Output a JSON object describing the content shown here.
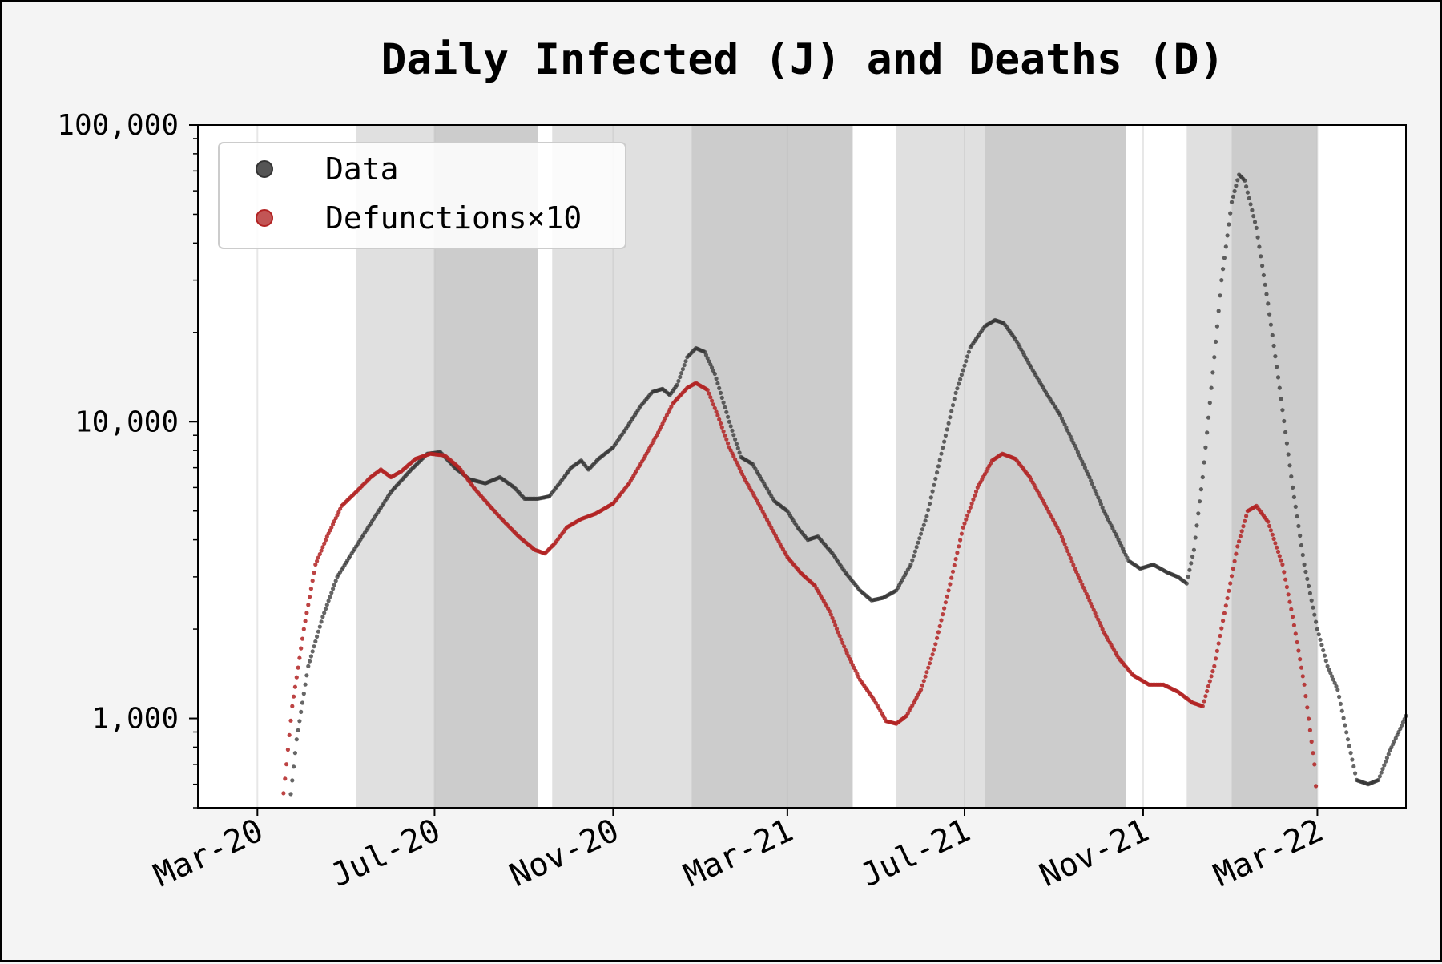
{
  "chart_data": {
    "type": "scatter",
    "title": "Daily Infected (J) and Deaths (D)",
    "xlabel": "",
    "ylabel": "",
    "y_scale": "log",
    "ylim": [
      500,
      100000
    ],
    "xlim": [
      "2020-01-20",
      "2022-05-01"
    ],
    "grid": "vertical lines at x ticks",
    "legend_position": "top-left",
    "y_ticks": [
      {
        "value": 1000,
        "label": "1,000"
      },
      {
        "value": 10000,
        "label": "10,000"
      },
      {
        "value": 100000,
        "label": "100,000"
      }
    ],
    "x_ticks": [
      {
        "date": "2020-03-01",
        "label": "Mar-20"
      },
      {
        "date": "2020-07-01",
        "label": "Jul-20"
      },
      {
        "date": "2020-11-01",
        "label": "Nov-20"
      },
      {
        "date": "2021-03-01",
        "label": "Mar-21"
      },
      {
        "date": "2021-07-01",
        "label": "Jul-21"
      },
      {
        "date": "2021-11-01",
        "label": "Nov-21"
      },
      {
        "date": "2022-03-01",
        "label": "Mar-22"
      }
    ],
    "shaded_periods": [
      {
        "start": "2020-05-08",
        "end": "2020-07-01",
        "shade": "light"
      },
      {
        "start": "2020-07-01",
        "end": "2020-09-10",
        "shade": "dark"
      },
      {
        "start": "2020-09-20",
        "end": "2020-12-25",
        "shade": "light"
      },
      {
        "start": "2020-12-25",
        "end": "2021-04-15",
        "shade": "dark"
      },
      {
        "start": "2021-05-15",
        "end": "2021-07-15",
        "shade": "light"
      },
      {
        "start": "2021-07-15",
        "end": "2021-10-20",
        "shade": "dark"
      },
      {
        "start": "2021-12-01",
        "end": "2022-01-01",
        "shade": "light"
      },
      {
        "start": "2022-01-01",
        "end": "2022-03-01",
        "shade": "dark"
      }
    ],
    "series": [
      {
        "name": "Data",
        "color": "#333333",
        "points": [
          [
            "2020-03-23",
            500
          ],
          [
            "2020-03-28",
            850
          ],
          [
            "2020-04-05",
            1500
          ],
          [
            "2020-04-15",
            2200
          ],
          [
            "2020-04-25",
            3000
          ],
          [
            "2020-05-08",
            3800
          ],
          [
            "2020-05-20",
            4700
          ],
          [
            "2020-06-01",
            5800
          ],
          [
            "2020-06-15",
            6900
          ],
          [
            "2020-06-26",
            7800
          ],
          [
            "2020-07-05",
            7900
          ],
          [
            "2020-07-15",
            7000
          ],
          [
            "2020-07-25",
            6400
          ],
          [
            "2020-08-05",
            6200
          ],
          [
            "2020-08-15",
            6500
          ],
          [
            "2020-08-25",
            6000
          ],
          [
            "2020-09-01",
            5500
          ],
          [
            "2020-09-10",
            5500
          ],
          [
            "2020-09-18",
            5600
          ],
          [
            "2020-09-25",
            6200
          ],
          [
            "2020-10-03",
            7000
          ],
          [
            "2020-10-10",
            7400
          ],
          [
            "2020-10-15",
            6900
          ],
          [
            "2020-10-22",
            7500
          ],
          [
            "2020-11-01",
            8200
          ],
          [
            "2020-11-10",
            9500
          ],
          [
            "2020-11-20",
            11300
          ],
          [
            "2020-11-28",
            12600
          ],
          [
            "2020-12-05",
            12900
          ],
          [
            "2020-12-10",
            12300
          ],
          [
            "2020-12-15",
            13300
          ],
          [
            "2020-12-22",
            16500
          ],
          [
            "2020-12-28",
            17700
          ],
          [
            "2021-01-03",
            17200
          ],
          [
            "2021-01-10",
            14500
          ],
          [
            "2021-01-20",
            10000
          ],
          [
            "2021-01-28",
            7600
          ],
          [
            "2021-02-05",
            7200
          ],
          [
            "2021-02-12",
            6300
          ],
          [
            "2021-02-20",
            5400
          ],
          [
            "2021-03-01",
            5000
          ],
          [
            "2021-03-08",
            4400
          ],
          [
            "2021-03-15",
            4000
          ],
          [
            "2021-03-22",
            4100
          ],
          [
            "2021-04-01",
            3600
          ],
          [
            "2021-04-10",
            3100
          ],
          [
            "2021-04-20",
            2700
          ],
          [
            "2021-04-28",
            2500
          ],
          [
            "2021-05-06",
            2550
          ],
          [
            "2021-05-15",
            2700
          ],
          [
            "2021-05-25",
            3300
          ],
          [
            "2021-06-05",
            4800
          ],
          [
            "2021-06-15",
            7800
          ],
          [
            "2021-06-25",
            12500
          ],
          [
            "2021-07-05",
            17800
          ],
          [
            "2021-07-15",
            21000
          ],
          [
            "2021-07-22",
            22000
          ],
          [
            "2021-07-28",
            21500
          ],
          [
            "2021-08-05",
            19000
          ],
          [
            "2021-08-15",
            15500
          ],
          [
            "2021-08-25",
            12800
          ],
          [
            "2021-09-05",
            10500
          ],
          [
            "2021-09-15",
            8300
          ],
          [
            "2021-09-25",
            6500
          ],
          [
            "2021-10-05",
            5000
          ],
          [
            "2021-10-15",
            4000
          ],
          [
            "2021-10-22",
            3400
          ],
          [
            "2021-10-30",
            3200
          ],
          [
            "2021-11-08",
            3300
          ],
          [
            "2021-11-18",
            3100
          ],
          [
            "2021-11-25",
            3000
          ],
          [
            "2021-12-01",
            2850
          ],
          [
            "2021-12-06",
            3700
          ],
          [
            "2021-12-12",
            6500
          ],
          [
            "2021-12-18",
            13000
          ],
          [
            "2021-12-25",
            30000
          ],
          [
            "2022-01-01",
            55000
          ],
          [
            "2022-01-06",
            68000
          ],
          [
            "2022-01-10",
            65000
          ],
          [
            "2022-01-18",
            45000
          ],
          [
            "2022-01-26",
            25000
          ],
          [
            "2022-02-03",
            13000
          ],
          [
            "2022-02-12",
            6000
          ],
          [
            "2022-02-20",
            3300
          ],
          [
            "2022-03-01",
            2000
          ],
          [
            "2022-03-08",
            1500
          ],
          [
            "2022-03-15",
            1250
          ],
          [
            "2022-03-22",
            850
          ],
          [
            "2022-03-28",
            620
          ],
          [
            "2022-04-05",
            600
          ],
          [
            "2022-04-12",
            620
          ],
          [
            "2022-04-20",
            780
          ],
          [
            "2022-04-26",
            900
          ],
          [
            "2022-05-01",
            1020
          ]
        ]
      },
      {
        "name": "Defunctions×10",
        "color": "#b22222",
        "points": [
          [
            "2020-03-18",
            500
          ],
          [
            "2020-03-25",
            1100
          ],
          [
            "2020-04-02",
            2000
          ],
          [
            "2020-04-10",
            3300
          ],
          [
            "2020-04-18",
            4100
          ],
          [
            "2020-04-28",
            5200
          ],
          [
            "2020-05-08",
            5800
          ],
          [
            "2020-05-18",
            6500
          ],
          [
            "2020-05-25",
            6900
          ],
          [
            "2020-06-01",
            6500
          ],
          [
            "2020-06-08",
            6800
          ],
          [
            "2020-06-18",
            7500
          ],
          [
            "2020-06-28",
            7800
          ],
          [
            "2020-07-08",
            7700
          ],
          [
            "2020-07-18",
            7000
          ],
          [
            "2020-07-28",
            6000
          ],
          [
            "2020-08-08",
            5200
          ],
          [
            "2020-08-18",
            4600
          ],
          [
            "2020-08-28",
            4100
          ],
          [
            "2020-09-08",
            3700
          ],
          [
            "2020-09-15",
            3600
          ],
          [
            "2020-09-22",
            3900
          ],
          [
            "2020-09-30",
            4400
          ],
          [
            "2020-10-10",
            4700
          ],
          [
            "2020-10-20",
            4900
          ],
          [
            "2020-11-01",
            5300
          ],
          [
            "2020-11-12",
            6200
          ],
          [
            "2020-11-22",
            7500
          ],
          [
            "2020-12-02",
            9200
          ],
          [
            "2020-12-12",
            11500
          ],
          [
            "2020-12-22",
            13000
          ],
          [
            "2020-12-28",
            13500
          ],
          [
            "2021-01-05",
            12800
          ],
          [
            "2021-01-12",
            10500
          ],
          [
            "2021-01-20",
            8200
          ],
          [
            "2021-01-30",
            6500
          ],
          [
            "2021-02-10",
            5200
          ],
          [
            "2021-02-20",
            4200
          ],
          [
            "2021-03-01",
            3500
          ],
          [
            "2021-03-10",
            3100
          ],
          [
            "2021-03-20",
            2800
          ],
          [
            "2021-03-30",
            2300
          ],
          [
            "2021-04-10",
            1700
          ],
          [
            "2021-04-20",
            1350
          ],
          [
            "2021-04-30",
            1150
          ],
          [
            "2021-05-08",
            980
          ],
          [
            "2021-05-15",
            960
          ],
          [
            "2021-05-22",
            1020
          ],
          [
            "2021-06-01",
            1250
          ],
          [
            "2021-06-10",
            1700
          ],
          [
            "2021-06-20",
            2700
          ],
          [
            "2021-06-30",
            4400
          ],
          [
            "2021-07-10",
            6000
          ],
          [
            "2021-07-20",
            7400
          ],
          [
            "2021-07-27",
            7800
          ],
          [
            "2021-08-05",
            7500
          ],
          [
            "2021-08-15",
            6500
          ],
          [
            "2021-08-25",
            5300
          ],
          [
            "2021-09-05",
            4200
          ],
          [
            "2021-09-15",
            3200
          ],
          [
            "2021-09-25",
            2500
          ],
          [
            "2021-10-05",
            1950
          ],
          [
            "2021-10-15",
            1600
          ],
          [
            "2021-10-25",
            1400
          ],
          [
            "2021-11-05",
            1300
          ],
          [
            "2021-11-15",
            1300
          ],
          [
            "2021-11-25",
            1230
          ],
          [
            "2021-12-05",
            1130
          ],
          [
            "2021-12-12",
            1100
          ],
          [
            "2021-12-20",
            1500
          ],
          [
            "2021-12-28",
            2400
          ],
          [
            "2022-01-05",
            3800
          ],
          [
            "2022-01-12",
            5000
          ],
          [
            "2022-01-18",
            5200
          ],
          [
            "2022-01-26",
            4600
          ],
          [
            "2022-02-05",
            3300
          ],
          [
            "2022-02-12",
            2200
          ],
          [
            "2022-02-20",
            1300
          ],
          [
            "2022-02-27",
            700
          ],
          [
            "2022-03-01",
            500
          ]
        ]
      }
    ]
  }
}
